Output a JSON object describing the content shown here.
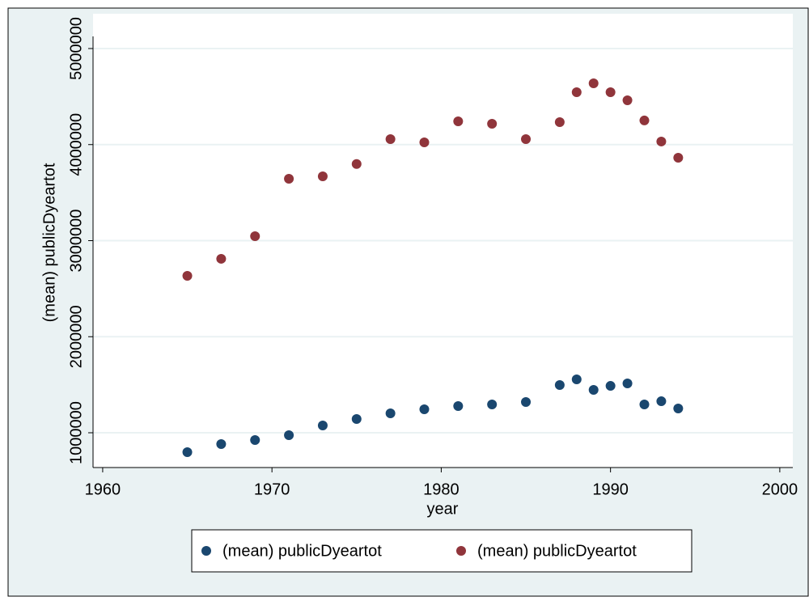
{
  "chart_data": {
    "type": "scatter",
    "x_label": "year",
    "y_label": "(mean) publicDyeartot",
    "xlim": [
      1959.43,
      2000.77
    ],
    "xticks": [
      1960,
      1970,
      1980,
      1990,
      2000
    ],
    "ylim": [
      638000,
      5362000
    ],
    "yticks": [
      1000000,
      2000000,
      3000000,
      4000000,
      5000000
    ],
    "grid": true,
    "series": [
      {
        "name": "(mean) publicDyeartot",
        "color": "#1a476f",
        "x": [
          1965,
          1967,
          1969,
          1971,
          1973,
          1975,
          1977,
          1979,
          1981,
          1983,
          1985,
          1987,
          1988,
          1989,
          1990,
          1991,
          1992,
          1993,
          1994
        ],
        "values": [
          798000,
          882000,
          924000,
          975000,
          1076000,
          1143000,
          1202000,
          1244000,
          1278000,
          1295000,
          1320000,
          1497000,
          1556000,
          1446000,
          1488000,
          1514000,
          1295000,
          1328000,
          1253000
        ]
      },
      {
        "name": "(mean) publicDyeartot",
        "color": "#90353b",
        "x": [
          1965,
          1967,
          1969,
          1971,
          1973,
          1975,
          1977,
          1979,
          1981,
          1983,
          1985,
          1987,
          1988,
          1989,
          1990,
          1991,
          1992,
          1993,
          1994
        ],
        "values": [
          2634000,
          2811000,
          3046000,
          3644000,
          3669000,
          3798000,
          4057000,
          4023000,
          4242000,
          4217000,
          4057000,
          4234000,
          4545000,
          4638000,
          4545000,
          4461000,
          4251000,
          4032000,
          3863000
        ]
      }
    ]
  }
}
